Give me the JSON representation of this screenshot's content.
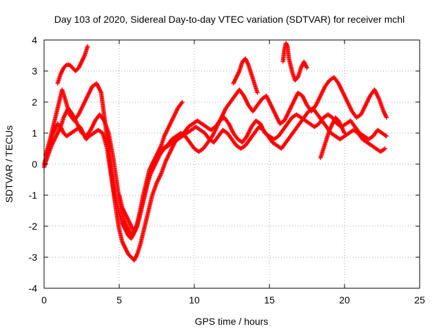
{
  "chart_data": {
    "type": "scatter",
    "title": "Day 103 of 2020, Sidereal Day-to-day VTEC variation (SDTVAR) for receiver mchl",
    "xlabel": "GPS time / hours",
    "ylabel": "SDTVAR / TECUs",
    "xlim": [
      0,
      25
    ],
    "ylim": [
      -4,
      4
    ],
    "xticks": [
      0,
      5,
      10,
      15,
      20,
      25
    ],
    "yticks": [
      -4,
      -3,
      -2,
      -1,
      0,
      1,
      2,
      3,
      4
    ],
    "grid": true,
    "marker": "+",
    "color": "#ff0000",
    "series": [
      {
        "x": [
          0.0,
          0.3,
          0.6,
          0.9,
          1.1,
          1.3,
          1.5,
          1.8,
          2.1,
          2.4,
          2.6,
          2.8,
          3.0,
          3.3,
          3.6,
          3.9,
          4.2,
          4.5,
          4.8,
          5.0,
          5.2,
          5.4,
          5.6,
          5.8,
          6.0,
          6.2,
          6.4,
          6.6,
          6.8,
          7.0,
          7.2,
          7.5,
          7.8,
          8.1,
          8.4,
          8.7,
          9.0,
          9.3,
          9.6,
          9.9,
          10.2,
          10.5,
          10.8,
          11.1,
          11.4,
          11.7,
          12.0,
          12.3,
          12.6,
          12.9,
          13.2,
          13.5,
          13.8,
          14.1,
          14.4,
          14.7,
          15.0,
          15.3,
          15.6,
          15.9,
          16.2,
          16.5,
          16.8,
          17.1,
          17.4,
          17.7,
          18.0,
          18.3,
          18.6,
          18.9,
          19.2,
          19.5,
          19.8,
          20.1,
          20.4,
          20.7,
          21.0,
          21.3,
          21.6,
          21.9,
          22.2,
          22.5,
          22.8
        ],
        "y": [
          0.0,
          0.5,
          1.0,
          1.3,
          1.2,
          1.0,
          0.9,
          1.0,
          1.1,
          1.2,
          1.0,
          0.8,
          0.9,
          1.0,
          1.1,
          1.0,
          0.5,
          -0.5,
          -1.5,
          -2.1,
          -2.5,
          -2.7,
          -2.9,
          -3.0,
          -3.1,
          -2.9,
          -2.6,
          -2.2,
          -1.8,
          -1.4,
          -1.0,
          -0.6,
          -0.3,
          0.1,
          0.4,
          0.7,
          0.9,
          1.0,
          1.2,
          1.3,
          1.4,
          1.3,
          1.2,
          1.1,
          1.2,
          1.4,
          1.5,
          1.3,
          1.0,
          0.8,
          0.7,
          0.9,
          1.2,
          1.4,
          1.3,
          1.0,
          0.9,
          0.8,
          0.9,
          1.1,
          1.3,
          1.5,
          1.6,
          1.5,
          1.4,
          1.3,
          1.2,
          1.3,
          1.5,
          1.6,
          1.5,
          1.3,
          1.2,
          1.3,
          1.4,
          1.2,
          1.0,
          0.9,
          0.8,
          0.9,
          1.1,
          1.0,
          0.9
        ]
      },
      {
        "x": [
          0.1,
          0.4,
          0.7,
          1.0,
          1.2,
          1.4,
          1.7,
          2.0,
          2.3,
          2.6,
          2.9,
          3.2,
          3.5,
          3.8,
          4.1,
          4.4,
          4.7,
          5.0,
          5.2,
          5.4,
          5.6,
          5.8,
          6.0,
          6.2,
          6.4,
          6.6,
          6.8,
          7.0,
          7.3,
          7.6,
          7.9,
          8.2,
          8.5,
          8.8,
          9.1,
          9.4,
          9.7,
          10.0,
          10.3,
          10.6,
          10.9,
          11.2,
          11.5,
          11.8,
          12.1,
          12.4,
          12.7,
          13.0,
          13.3,
          13.6,
          13.9,
          14.2,
          14.5,
          14.8,
          15.1,
          15.4,
          15.7,
          16.0,
          16.3,
          16.6,
          16.9,
          17.2,
          17.5,
          17.8,
          18.1,
          18.4,
          18.7,
          19.0,
          19.3,
          19.6,
          19.9,
          20.2,
          20.5,
          20.8,
          21.1,
          21.4,
          21.7,
          22.0,
          22.3,
          22.6,
          22.8
        ],
        "y": [
          0.3,
          0.8,
          1.4,
          2.0,
          2.4,
          2.1,
          1.6,
          1.4,
          1.6,
          1.9,
          2.2,
          2.5,
          2.6,
          2.3,
          1.2,
          0.0,
          -1.0,
          -1.6,
          -1.9,
          -2.1,
          -2.3,
          -2.4,
          -2.2,
          -1.9,
          -1.5,
          -1.0,
          -0.6,
          -0.2,
          0.1,
          0.3,
          0.5,
          0.6,
          0.8,
          0.9,
          1.0,
          0.9,
          0.7,
          0.5,
          0.4,
          0.5,
          0.7,
          0.9,
          1.2,
          1.5,
          1.8,
          2.0,
          2.2,
          2.4,
          2.2,
          1.9,
          1.7,
          1.9,
          2.1,
          2.2,
          1.9,
          1.6,
          1.3,
          1.4,
          1.7,
          2.0,
          2.3,
          2.2,
          1.9,
          1.7,
          1.9,
          2.2,
          2.5,
          2.7,
          2.8,
          2.6,
          2.3,
          2.0,
          1.7,
          1.5,
          1.6,
          1.9,
          2.2,
          2.4,
          2.1,
          1.7,
          1.5
        ]
      },
      {
        "x": [
          0.0,
          0.2,
          0.5,
          0.8,
          1.1,
          1.3,
          1.6,
          1.9,
          2.2,
          2.5,
          2.8,
          3.1,
          3.4,
          3.7,
          4.0,
          4.3,
          4.6,
          4.9,
          5.1,
          5.3,
          5.5,
          5.7,
          5.9,
          6.1,
          6.3,
          6.5,
          6.7,
          6.9,
          7.1,
          7.4,
          7.7,
          8.0,
          8.3,
          8.6,
          8.9,
          9.2,
          9.5,
          9.8,
          10.1,
          10.4,
          10.7,
          11.0,
          11.3,
          11.6,
          11.9,
          12.2,
          12.5,
          12.8,
          13.1,
          13.4,
          13.7,
          14.0,
          14.3,
          14.6,
          14.9,
          15.2,
          15.5,
          15.8,
          16.1,
          16.4,
          16.7,
          17.0,
          17.3,
          17.6,
          17.9,
          18.2,
          18.5,
          18.8,
          19.1,
          19.4,
          19.7,
          20.0,
          20.3,
          20.6,
          20.9,
          21.2,
          21.5,
          21.8,
          22.1,
          22.4,
          22.7
        ],
        "y": [
          -0.1,
          0.2,
          0.6,
          0.9,
          1.2,
          1.5,
          1.8,
          1.6,
          1.3,
          1.0,
          0.9,
          1.1,
          1.4,
          1.6,
          1.4,
          1.0,
          0.2,
          -0.8,
          -1.4,
          -1.8,
          -2.0,
          -2.2,
          -2.3,
          -2.1,
          -1.8,
          -1.4,
          -1.0,
          -0.6,
          -0.3,
          0.0,
          0.3,
          0.5,
          0.6,
          0.7,
          0.8,
          0.9,
          1.0,
          1.1,
          1.2,
          1.1,
          1.0,
          0.8,
          0.7,
          0.9,
          1.1,
          1.0,
          0.8,
          0.6,
          0.5,
          0.6,
          0.8,
          1.0,
          1.2,
          1.1,
          0.9,
          0.7,
          0.6,
          0.5,
          0.7,
          0.9,
          1.1,
          1.3,
          1.5,
          1.7,
          1.8,
          1.6,
          1.4,
          1.2,
          1.0,
          0.9,
          0.8,
          0.9,
          1.0,
          1.1,
          1.0,
          0.8,
          0.7,
          0.6,
          0.5,
          0.4,
          0.5
        ]
      },
      {
        "x": [
          0.9,
          1.1,
          1.3,
          1.5,
          1.7,
          1.9,
          2.1,
          2.3,
          2.5,
          2.7,
          2.9
        ],
        "y": [
          2.6,
          2.9,
          3.1,
          3.2,
          3.2,
          3.1,
          3.0,
          3.1,
          3.3,
          3.5,
          3.8
        ]
      },
      {
        "x": [
          5.0,
          5.2,
          5.4,
          5.6,
          5.8,
          6.0,
          6.2,
          6.4,
          6.6,
          6.8,
          7.0,
          7.2,
          7.4,
          7.6,
          7.8,
          8.0,
          8.3,
          8.6,
          8.9,
          9.2
        ],
        "y": [
          -1.0,
          -1.4,
          -1.6,
          -1.8,
          -2.0,
          -2.2,
          -2.0,
          -1.6,
          -1.2,
          -0.8,
          -0.4,
          0.0,
          0.2,
          0.4,
          0.6,
          0.9,
          1.2,
          1.5,
          1.8,
          2.0
        ]
      },
      {
        "x": [
          12.6,
          12.8,
          13.0,
          13.2,
          13.4,
          13.6,
          13.8,
          14.0,
          14.2
        ],
        "y": [
          2.6,
          2.8,
          3.0,
          3.3,
          3.4,
          3.2,
          2.9,
          2.6,
          2.3
        ]
      },
      {
        "x": [
          15.9,
          16.0,
          16.1,
          16.2,
          16.3,
          16.5,
          16.7,
          16.9,
          17.1,
          17.3,
          17.5
        ],
        "y": [
          3.3,
          3.7,
          3.9,
          3.8,
          3.4,
          3.0,
          2.7,
          2.8,
          3.1,
          3.3,
          3.1
        ]
      },
      {
        "x": [
          18.4,
          18.6,
          18.8,
          19.0,
          19.2,
          19.4,
          19.6,
          19.8,
          20.0
        ],
        "y": [
          0.2,
          0.5,
          0.8,
          1.1,
          1.3,
          1.5,
          1.4,
          1.2,
          1.0
        ]
      }
    ]
  }
}
